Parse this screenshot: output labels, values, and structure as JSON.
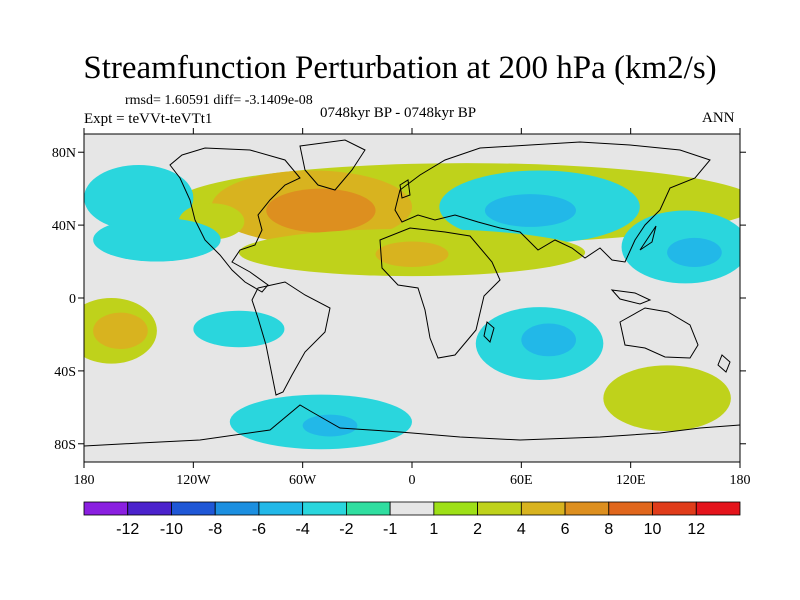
{
  "title": "Streamfunction Perturbation at 200 hPa (km2/s)",
  "stats": "rmsd= 1.60591 diff= -3.1409e-08",
  "experiment": "Expt = teVVt-teVTt1",
  "period": "0748kyr BP - 0748kyr BP",
  "season": "ANN",
  "lon_labels": [
    "180",
    "120W",
    "60W",
    "0",
    "60E",
    "120E",
    "180"
  ],
  "lat_labels": [
    "80N",
    "40N",
    "0",
    "40S",
    "80S"
  ],
  "colorbar": {
    "labels": [
      "-12",
      "-10",
      "-8",
      "-6",
      "-4",
      "-2",
      "-1",
      "1",
      "2",
      "4",
      "6",
      "8",
      "10",
      "12"
    ],
    "colors": [
      "#8a1fe0",
      "#4b22cc",
      "#1f57d6",
      "#1c8fe0",
      "#22b8e8",
      "#2ad6dd",
      "#30dea0",
      "#e6e6e6",
      "#9ee017",
      "#bfd21b",
      "#d8b31f",
      "#dd8f1f",
      "#e0661c",
      "#e03c1a",
      "#e4141c"
    ]
  },
  "map_fields": [
    {
      "sign": "positive",
      "level": 2,
      "lon": 30,
      "lat": 52,
      "rx": 160,
      "ry": 22
    },
    {
      "sign": "positive",
      "level": 4,
      "lon": -55,
      "lat": 50,
      "rx": 55,
      "ry": 20
    },
    {
      "sign": "positive",
      "level": 6,
      "lon": -50,
      "lat": 48,
      "rx": 30,
      "ry": 12
    },
    {
      "sign": "negative",
      "level": -2,
      "lon": -150,
      "lat": 55,
      "rx": 30,
      "ry": 18
    },
    {
      "sign": "positive",
      "level": 2,
      "lon": -110,
      "lat": 42,
      "rx": 18,
      "ry": 10
    },
    {
      "sign": "negative",
      "level": -2,
      "lon": -140,
      "lat": 32,
      "rx": 35,
      "ry": 12
    },
    {
      "sign": "negative",
      "level": -2,
      "lon": 70,
      "lat": 50,
      "rx": 55,
      "ry": 20
    },
    {
      "sign": "negative",
      "level": -4,
      "lon": 65,
      "lat": 48,
      "rx": 25,
      "ry": 9
    },
    {
      "sign": "positive",
      "level": 2,
      "lon": 0,
      "lat": 25,
      "rx": 95,
      "ry": 13
    },
    {
      "sign": "positive",
      "level": 4,
      "lon": 0,
      "lat": 24,
      "rx": 20,
      "ry": 7
    },
    {
      "sign": "negative",
      "level": -2,
      "lon": 150,
      "lat": 28,
      "rx": 35,
      "ry": 20
    },
    {
      "sign": "negative",
      "level": -4,
      "lon": 155,
      "lat": 25,
      "rx": 15,
      "ry": 8
    },
    {
      "sign": "negative",
      "level": -2,
      "lon": -95,
      "lat": -17,
      "rx": 25,
      "ry": 10
    },
    {
      "sign": "positive",
      "level": 2,
      "lon": -165,
      "lat": -18,
      "rx": 25,
      "ry": 18
    },
    {
      "sign": "positive",
      "level": 4,
      "lon": -160,
      "lat": -18,
      "rx": 15,
      "ry": 10
    },
    {
      "sign": "negative",
      "level": -2,
      "lon": 70,
      "lat": -25,
      "rx": 35,
      "ry": 20
    },
    {
      "sign": "negative",
      "level": -4,
      "lon": 75,
      "lat": -23,
      "rx": 15,
      "ry": 9
    },
    {
      "sign": "positive",
      "level": 2,
      "lon": 140,
      "lat": -55,
      "rx": 35,
      "ry": 18
    },
    {
      "sign": "negative",
      "level": -2,
      "lon": -50,
      "lat": -68,
      "rx": 50,
      "ry": 15
    },
    {
      "sign": "negative",
      "level": -4,
      "lon": -45,
      "lat": -70,
      "rx": 15,
      "ry": 6
    }
  ]
}
